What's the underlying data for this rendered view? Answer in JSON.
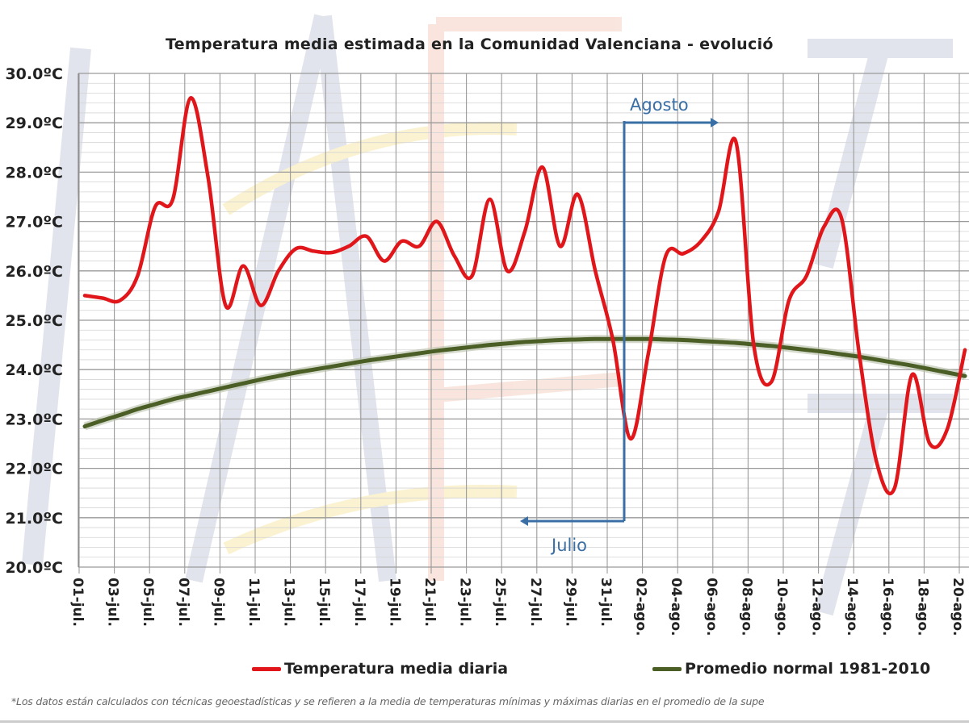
{
  "chart_data": {
    "type": "line",
    "title": "Temperatura media estimada en la Comunidad Valenciana - evolució",
    "xlabel": "",
    "ylabel": "",
    "ylim": [
      20,
      30
    ],
    "yticks": [
      "20.0ºC",
      "21.0ºC",
      "22.0ºC",
      "23.0ºC",
      "24.0ºC",
      "25.0ºC",
      "26.0ºC",
      "27.0ºC",
      "28.0ºC",
      "29.0ºC",
      "30.0ºC"
    ],
    "grid": true,
    "legend_position": "bottom",
    "x": [
      "01-jul.",
      "02-jul.",
      "03-jul.",
      "04-jul.",
      "05-jul.",
      "06-jul.",
      "07-jul.",
      "08-jul.",
      "09-jul.",
      "10-jul.",
      "11-jul.",
      "12-jul.",
      "13-jul.",
      "14-jul.",
      "15-jul.",
      "16-jul.",
      "17-jul.",
      "18-jul.",
      "19-jul.",
      "20-jul.",
      "21-jul.",
      "22-jul.",
      "23-jul.",
      "24-jul.",
      "25-jul.",
      "26-jul.",
      "27-jul.",
      "28-jul.",
      "29-jul.",
      "30-jul.",
      "31-jul.",
      "01-ago.",
      "02-ago.",
      "03-ago.",
      "04-ago.",
      "05-ago.",
      "06-ago.",
      "07-ago.",
      "08-ago.",
      "09-ago.",
      "10-ago.",
      "11-ago.",
      "12-ago.",
      "13-ago.",
      "14-ago.",
      "15-ago.",
      "16-ago.",
      "17-ago.",
      "18-ago.",
      "19-ago.",
      "20-ago."
    ],
    "xtick_labels": [
      "01-jul.",
      "03-jul.",
      "05-jul.",
      "07-jul.",
      "09-jul.",
      "11-jul.",
      "13-jul.",
      "15-jul.",
      "17-jul.",
      "19-jul.",
      "21-jul.",
      "23-jul.",
      "25-jul.",
      "27-jul.",
      "29-jul.",
      "31-jul.",
      "02-ago.",
      "04-ago.",
      "06-ago.",
      "08-ago.",
      "10-ago.",
      "12-ago.",
      "14-ago.",
      "16-ago.",
      "18-ago.",
      "20-ago."
    ],
    "series": [
      {
        "name": "Temperatura media diaria",
        "color": "#e0161b",
        "values": [
          25.5,
          25.45,
          25.4,
          25.9,
          27.3,
          27.45,
          29.5,
          27.9,
          25.3,
          26.1,
          25.3,
          26.0,
          26.45,
          26.4,
          26.37,
          26.5,
          26.7,
          26.2,
          26.6,
          26.5,
          27.0,
          26.3,
          25.9,
          27.45,
          26.0,
          26.8,
          28.1,
          26.5,
          27.55,
          26.0,
          24.6,
          22.6,
          24.3,
          26.3,
          26.35,
          26.6,
          27.2,
          28.6,
          24.5,
          23.75,
          25.4,
          25.9,
          26.9,
          27.05,
          24.3,
          22.1,
          21.6,
          23.9,
          22.5,
          22.8,
          24.4
        ]
      },
      {
        "name": "Promedio normal 1981-2010",
        "color": "#4a5e26",
        "values": [
          22.85,
          22.97,
          23.08,
          23.2,
          23.3,
          23.4,
          23.48,
          23.56,
          23.64,
          23.72,
          23.8,
          23.87,
          23.94,
          24.0,
          24.06,
          24.12,
          24.18,
          24.23,
          24.28,
          24.33,
          24.38,
          24.42,
          24.46,
          24.5,
          24.53,
          24.56,
          24.58,
          24.6,
          24.61,
          24.62,
          24.62,
          24.62,
          24.62,
          24.61,
          24.6,
          24.58,
          24.56,
          24.54,
          24.51,
          24.48,
          24.44,
          24.4,
          24.36,
          24.31,
          24.26,
          24.2,
          24.14,
          24.08,
          24.01,
          23.94,
          23.87
        ]
      }
    ],
    "annotations": {
      "agosto": "Agosto",
      "julio": "Julio",
      "color": "#3a6fa5"
    }
  },
  "footnote": "*Los datos están calculados con técnicas geoestadísticas y se refieren a la media de temperaturas mínimas y máximas diarias en el promedio de la supe",
  "watermark": "AEMet"
}
